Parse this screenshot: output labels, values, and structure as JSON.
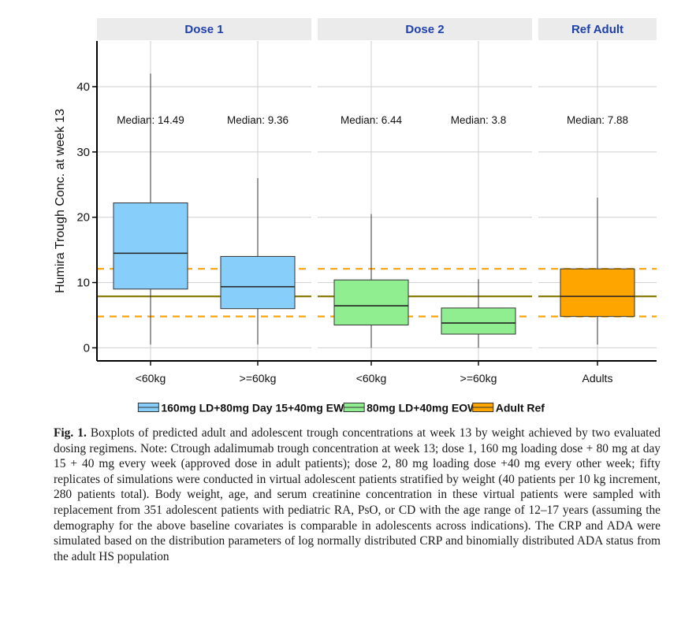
{
  "chart_data": {
    "type": "boxplot",
    "ylabel": "Humira Trough Conc. at week 13",
    "xlabel": "",
    "ylim": [
      -2,
      47
    ],
    "yticks": [
      0,
      10,
      20,
      30,
      40
    ],
    "grid": true,
    "facets": [
      {
        "label": "Dose 1",
        "categories": [
          "<60kg",
          ">=60kg"
        ]
      },
      {
        "label": "Dose 2",
        "categories": [
          "<60kg",
          ">=60kg"
        ]
      },
      {
        "label": "Ref Adult",
        "categories": [
          "Adults"
        ]
      }
    ],
    "boxes": [
      {
        "facet": 0,
        "category": "<60kg",
        "series": 0,
        "min": 0.5,
        "q1": 9.0,
        "median": 14.49,
        "q3": 22.2,
        "max": 42.0,
        "median_label": "Median: 14.49"
      },
      {
        "facet": 0,
        "category": ">=60kg",
        "series": 0,
        "min": 0.5,
        "q1": 6.0,
        "median": 9.36,
        "q3": 14.0,
        "max": 26.0,
        "median_label": "Median: 9.36"
      },
      {
        "facet": 1,
        "category": "<60kg",
        "series": 1,
        "min": 0.0,
        "q1": 3.5,
        "median": 6.44,
        "q3": 10.4,
        "max": 20.5,
        "median_label": "Median: 6.44"
      },
      {
        "facet": 1,
        "category": ">=60kg",
        "series": 1,
        "min": 0.0,
        "q1": 2.1,
        "median": 3.8,
        "q3": 6.1,
        "max": 10.5,
        "median_label": "Median: 3.8"
      },
      {
        "facet": 2,
        "category": "Adults",
        "series": 2,
        "min": 0.5,
        "q1": 4.8,
        "median": 7.88,
        "q3": 12.1,
        "max": 23.0,
        "median_label": "Median: 7.88"
      }
    ],
    "reference_lines": {
      "median": 7.88,
      "q1": 4.8,
      "q3": 12.1
    },
    "series": [
      {
        "name": "160mg LD+80mg Day 15+40mg EW",
        "color": "#87CEFA"
      },
      {
        "name": "80mg LD+40mg EOW",
        "color": "#90EE90"
      },
      {
        "name": "Adult Ref",
        "color": "#FFA500"
      }
    ],
    "legend_position": "bottom",
    "colors": {
      "ref_median_line": "#8B7D0B",
      "ref_quartile_line": "#FFA500",
      "strip": "#EBEBEB",
      "facet_label": "#1F3FAA"
    }
  },
  "caption": {
    "figno": "Fig. 1.",
    "text": "Boxplots of predicted adult and adolescent trough concentrations at week 13 by weight achieved by two evaluated dosing regimens. Note: Ctrough adalimumab trough concentration at week 13; dose 1, 160 mg loading dose + 80 mg at day 15 + 40 mg every week (approved dose in adult patients); dose 2, 80 mg loading dose +40 mg every other week; fifty replicates of simulations were conducted in virtual adolescent patients stratified by weight (40 patients per 10 kg increment, 280 patients total). Body weight, age, and serum creatinine concentration in these virtual patients were sampled with replacement from 351 adolescent patients with pediatric RA, PsO, or CD with the age range of 12–17 years (assuming the demography for the above baseline covariates is comparable in adolescents across indications). The CRP and ADA were simulated based on the distribution parameters of log normally distributed CRP and binomially distributed ADA status from the adult HS population"
  }
}
